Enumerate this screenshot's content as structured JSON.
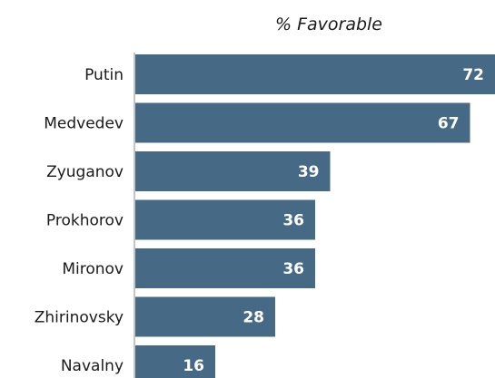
{
  "chart_data": {
    "type": "bar",
    "orientation": "horizontal",
    "title": "% Favorable",
    "categories": [
      "Putin",
      "Medvedev",
      "Zyuganov",
      "Prokhorov",
      "Mironov",
      "Zhirinovsky",
      "Navalny"
    ],
    "values": [
      72,
      67,
      39,
      36,
      36,
      28,
      16
    ],
    "xlim": [
      0,
      72
    ],
    "grid": false,
    "bar_color": "#466a85",
    "value_label_color": "#ffffff",
    "axis_color": "#888888"
  }
}
